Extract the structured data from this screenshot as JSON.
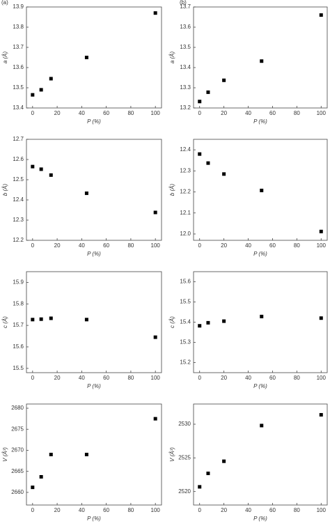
{
  "chart_data": [
    {
      "type": "scatter",
      "panel_label": "(a)",
      "ylabel": "a (Å)",
      "xlabel": "P (%)",
      "color": "#000000",
      "x": [
        0,
        7,
        15,
        44,
        100
      ],
      "values": [
        13.465,
        13.49,
        13.545,
        13.65,
        13.87
      ],
      "xlim": [
        -5,
        105
      ],
      "xticks": [
        0,
        20,
        40,
        60,
        80,
        100
      ],
      "ylim": [
        13.4,
        13.9
      ],
      "yticks": [
        13.4,
        13.5,
        13.6,
        13.7,
        13.8,
        13.9
      ]
    },
    {
      "type": "scatter",
      "panel_label": "(b)",
      "ylabel": "a (Å)",
      "xlabel": "P (%)",
      "color": "#000000",
      "x": [
        0,
        7,
        20,
        51,
        100
      ],
      "values": [
        13.232,
        13.278,
        13.337,
        13.432,
        13.66
      ],
      "xlim": [
        -5,
        105
      ],
      "xticks": [
        0,
        20,
        40,
        60,
        80,
        100
      ],
      "ylim": [
        13.2,
        13.7
      ],
      "yticks": [
        13.2,
        13.3,
        13.4,
        13.5,
        13.6,
        13.7
      ]
    },
    {
      "type": "scatter",
      "ylabel": "b (Å)",
      "xlabel": "P (%)",
      "color": "#000000",
      "x": [
        0,
        7,
        15,
        44,
        100
      ],
      "values": [
        12.565,
        12.552,
        12.523,
        12.433,
        12.338
      ],
      "xlim": [
        -5,
        105
      ],
      "xticks": [
        0,
        20,
        40,
        60,
        80,
        100
      ],
      "ylim": [
        12.2,
        12.7
      ],
      "yticks": [
        12.2,
        12.3,
        12.4,
        12.5,
        12.6,
        12.7
      ]
    },
    {
      "type": "scatter",
      "ylabel": "b (Å)",
      "xlabel": "P (%)",
      "color": "#000000",
      "x": [
        0,
        7,
        20,
        51,
        100
      ],
      "values": [
        12.38,
        12.337,
        12.285,
        12.207,
        12.012
      ],
      "xlim": [
        -5,
        105
      ],
      "xticks": [
        0,
        20,
        40,
        60,
        80,
        100
      ],
      "ylim": [
        11.97,
        12.45
      ],
      "yticks": [
        {
          "value": 12,
          "label": "12.0"
        },
        12.1,
        12.2,
        12.3,
        12.4
      ]
    },
    {
      "type": "scatter",
      "ylabel": "c (Å)",
      "xlabel": "P (%)",
      "color": "#000000",
      "x": [
        0,
        7,
        15,
        44,
        100
      ],
      "values": [
        15.727,
        15.729,
        15.733,
        15.727,
        15.645
      ],
      "xlim": [
        -5,
        105
      ],
      "xticks": [
        0,
        20,
        40,
        60,
        80,
        100
      ],
      "ylim": [
        15.48,
        15.95
      ],
      "yticks": [
        15.5,
        15.6,
        15.7,
        15.8,
        15.9
      ]
    },
    {
      "type": "scatter",
      "ylabel": "c (Å)",
      "xlabel": "P (%)",
      "color": "#000000",
      "x": [
        0,
        7,
        20,
        51,
        100
      ],
      "values": [
        15.382,
        15.397,
        15.405,
        15.428,
        15.42
      ],
      "xlim": [
        -5,
        105
      ],
      "xticks": [
        0,
        20,
        40,
        60,
        80,
        100
      ],
      "ylim": [
        15.15,
        15.65
      ],
      "yticks": [
        15.2,
        15.3,
        15.4,
        15.5,
        15.6
      ]
    },
    {
      "type": "scatter",
      "ylabel": "V (Å³)",
      "xlabel": "P (%)",
      "color": "#000000",
      "x": [
        0,
        7,
        15,
        44,
        100
      ],
      "values": [
        2661.2,
        2663.7,
        2669.0,
        2669.0,
        2677.5
      ],
      "xlim": [
        -5,
        105
      ],
      "xticks": [
        0,
        20,
        40,
        60,
        80,
        100
      ],
      "ylim": [
        2657,
        2681
      ],
      "yticks": [
        2660,
        2665,
        2670,
        2675,
        2680
      ]
    },
    {
      "type": "scatter",
      "ylabel": "V (Å³)",
      "xlabel": "P (%)",
      "color": "#000000",
      "x": [
        0,
        7,
        20,
        51,
        100
      ],
      "values": [
        2520.7,
        2522.7,
        2524.5,
        2529.8,
        2531.4
      ],
      "xlim": [
        -5,
        105
      ],
      "xticks": [
        0,
        20,
        40,
        60,
        80,
        100
      ],
      "ylim": [
        2518,
        2533
      ],
      "yticks": [
        2520,
        2525,
        2530
      ]
    }
  ]
}
